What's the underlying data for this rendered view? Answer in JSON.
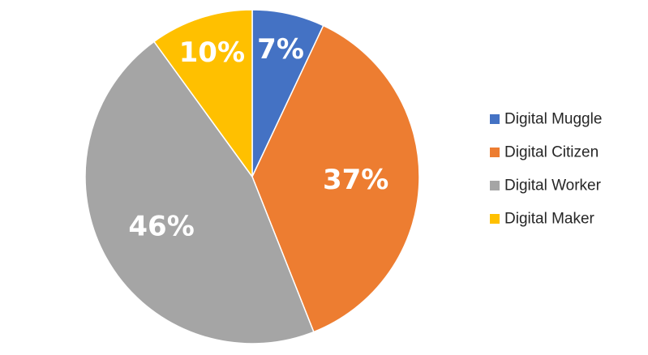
{
  "chart_data": {
    "type": "pie",
    "title": "",
    "categories": [
      "Digital Muggle",
      "Digital Citizen",
      "Digital Worker",
      "Digital Maker"
    ],
    "values": [
      7,
      37,
      46,
      10
    ],
    "data_labels": [
      "7%",
      "37%",
      "46%",
      "10%"
    ],
    "colors": [
      "#4472C4",
      "#ED7D31",
      "#A5A5A5",
      "#FFC000"
    ],
    "start_angle_deg": 0,
    "direction": "clockwise",
    "legend_position": "right",
    "label_color": "#FFFFFF"
  }
}
